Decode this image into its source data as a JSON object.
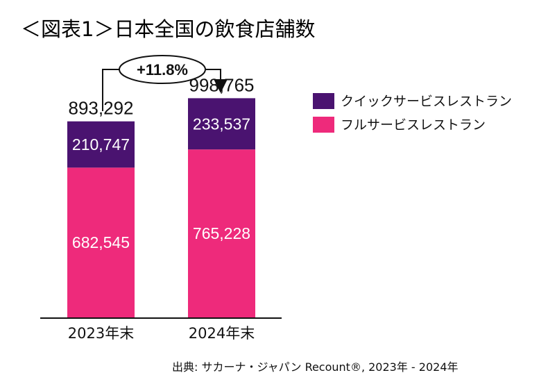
{
  "title": "＜図表1＞日本全国の飲食店舗数",
  "source": "出典: サカーナ・ジャパン Recount®, 2023年 - 2024年",
  "growth_label": "+11.8%",
  "colors": {
    "quick": "#4a1370",
    "full": "#ee2a7b",
    "axis": "#111111"
  },
  "chart_data": {
    "type": "bar",
    "stacked": true,
    "categories": [
      "2023年末",
      "2024年末"
    ],
    "totals": [
      893292,
      998765
    ],
    "total_labels": [
      "893,292",
      "998,765"
    ],
    "series": [
      {
        "name": "フルサービスレストラン",
        "values": [
          682545,
          765228
        ],
        "labels": [
          "682,545",
          "765,228"
        ]
      },
      {
        "name": "クイックサービスレストラン",
        "values": [
          210747,
          233537
        ],
        "labels": [
          "210,747",
          "233,537"
        ]
      }
    ],
    "legend_order": [
      "クイックサービスレストラン",
      "フルサービスレストラン"
    ],
    "grid": false,
    "legend_position": "top-right"
  }
}
